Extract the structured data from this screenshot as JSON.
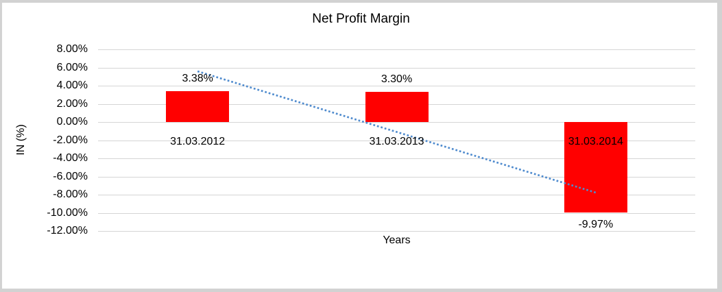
{
  "window": {
    "background": "#ffffff",
    "border_color": "#d2d2d2"
  },
  "chart_data": {
    "type": "bar",
    "title": "Net Profit Margin",
    "xlabel": "Years",
    "ylabel": "IN (%)",
    "categories": [
      "31.03.2012",
      "31.03.2013",
      "31.03.2014"
    ],
    "values": [
      3.38,
      3.3,
      -9.97
    ],
    "data_labels": [
      "3.38%",
      "3.30%",
      "-9.97%"
    ],
    "ylim": [
      -12,
      8
    ],
    "ytick_step": 2,
    "ytick_labels": [
      "8.00%",
      "6.00%",
      "4.00%",
      "2.00%",
      "0.00%",
      "-2.00%",
      "-4.00%",
      "-6.00%",
      "-8.00%",
      "-10.00%",
      "-12.00%"
    ],
    "grid": true,
    "legend": "none",
    "bar_color": "#ff0000",
    "gridline_color": "#d5d5d5",
    "trendline": {
      "kind": "linear",
      "style": "dotted",
      "color": "#4f8bce",
      "start_value": 5.58,
      "end_value": -7.77
    }
  }
}
